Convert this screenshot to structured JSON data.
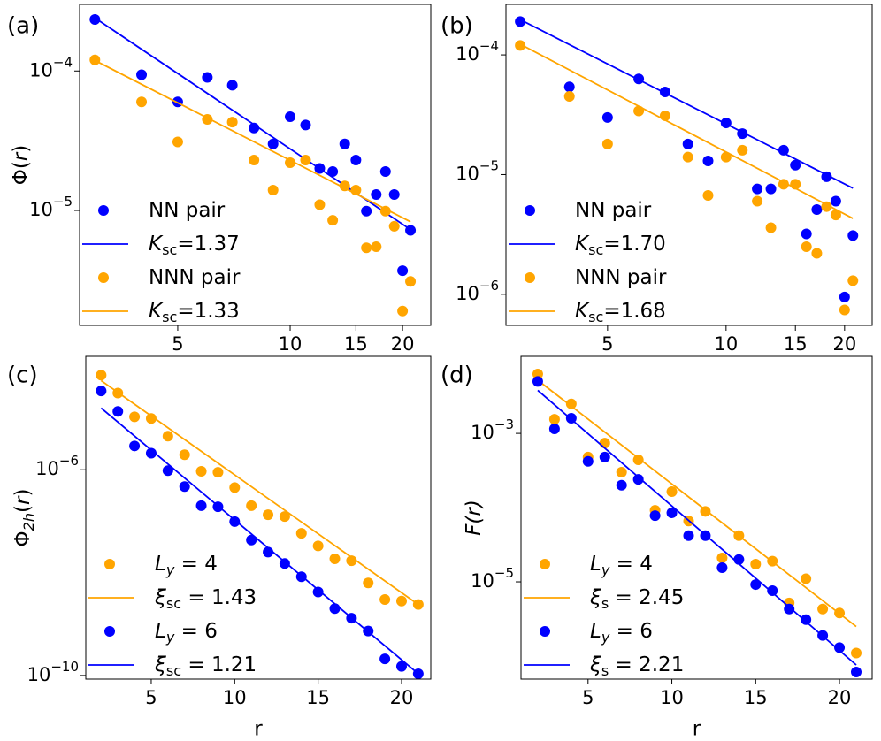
{
  "chart_data": [
    {
      "type": "scatter",
      "label": "(a)",
      "xscale": "log",
      "yscale": "log",
      "legend": "lower left",
      "ylabel": [
        {
          "text": "Φ("
        },
        {
          "text": "r",
          "style": "i"
        },
        {
          "text": ")"
        }
      ],
      "xlim": [
        2.73,
        23.8
      ],
      "xticks": [
        5,
        10,
        15,
        20
      ],
      "ylim": [
        1.5e-06,
        0.0003
      ],
      "yticks": [
        {
          "value": 0.0001,
          "label": "10",
          "exp": "−4"
        },
        {
          "value": 1e-05,
          "label": "10",
          "exp": "−5"
        }
      ],
      "series": [
        {
          "name": [
            {
              "text": "NN pair"
            }
          ],
          "mode": "markers",
          "color": "#0000ff",
          "x": [
            3,
            4,
            5,
            6,
            7,
            8,
            9,
            10,
            11,
            12,
            13,
            14,
            15,
            16,
            17,
            18,
            19,
            20,
            21
          ],
          "values": [
            0.000234,
            9.4e-05,
            6e-05,
            9e-05,
            7.9e-05,
            3.9e-05,
            3e-05,
            4.7e-05,
            4.1e-05,
            2e-05,
            1.9e-05,
            3e-05,
            2.3e-05,
            9.9e-06,
            1.3e-05,
            1.9e-05,
            1.3e-05,
            3.7e-06,
            7.2e-06
          ]
        },
        {
          "name": [
            {
              "text": "K",
              "style": "i"
            },
            {
              "text": "sc",
              "style": "sub"
            },
            {
              "text": "=1.37"
            }
          ],
          "mode": "line",
          "color": "#0000ff",
          "x": [
            3,
            21
          ],
          "values": [
            0.00024,
            7.3e-06
          ]
        },
        {
          "name": [
            {
              "text": "NNN pair"
            }
          ],
          "mode": "markers",
          "color": "#ffa500",
          "x": [
            3,
            4,
            5,
            6,
            7,
            8,
            9,
            10,
            11,
            12,
            13,
            14,
            15,
            16,
            17,
            18,
            19,
            20,
            21
          ],
          "values": [
            0.00012,
            6e-05,
            3.1e-05,
            4.5e-05,
            4.3e-05,
            2.3e-05,
            1.4e-05,
            2.2e-05,
            2.3e-05,
            1.1e-05,
            8.5e-06,
            1.5e-05,
            1.4e-05,
            5.4e-06,
            5.5e-06,
            9.9e-06,
            7.7e-06,
            1.9e-06,
            3.1e-06
          ]
        },
        {
          "name": [
            {
              "text": "K",
              "style": "i"
            },
            {
              "text": "sc",
              "style": "sub"
            },
            {
              "text": "=1.33"
            }
          ],
          "mode": "line",
          "color": "#ffa500",
          "x": [
            3,
            21
          ],
          "values": [
            0.000119,
            8.3e-06
          ]
        }
      ]
    },
    {
      "type": "scatter",
      "label": "(b)",
      "xscale": "log",
      "yscale": "log",
      "legend": "lower left",
      "xlim": [
        2.76,
        23.5
      ],
      "xticks": [
        5,
        10,
        15,
        20
      ],
      "ylim": [
        5.5e-07,
        0.000264
      ],
      "yticks": [
        {
          "value": 0.0001,
          "label": "10",
          "exp": "−4"
        },
        {
          "value": 1e-05,
          "label": "10",
          "exp": "−5"
        },
        {
          "value": 1e-06,
          "label": "10",
          "exp": "−6"
        }
      ],
      "series": [
        {
          "name": [
            {
              "text": "NN pair"
            }
          ],
          "mode": "markers",
          "color": "#0000ff",
          "x": [
            3,
            4,
            5,
            6,
            7,
            8,
            9,
            10,
            11,
            12,
            13,
            14,
            15,
            16,
            17,
            18,
            19,
            20,
            21
          ],
          "values": [
            0.00019,
            5.4e-05,
            3e-05,
            6.3e-05,
            4.9e-05,
            1.8e-05,
            1.3e-05,
            2.7e-05,
            2.2e-05,
            7.6e-06,
            7.6e-06,
            1.6e-05,
            1.2e-05,
            3.2e-06,
            5.1e-06,
            9.6e-06,
            6e-06,
            9.5e-07,
            3.1e-06
          ]
        },
        {
          "name": [
            {
              "text": "K",
              "style": "i"
            },
            {
              "text": "sc",
              "style": "sub"
            },
            {
              "text": "=1.70"
            }
          ],
          "mode": "line",
          "color": "#0000ff",
          "x": [
            3,
            21
          ],
          "values": [
            0.000197,
            7.7e-06
          ]
        },
        {
          "name": [
            {
              "text": "NNN pair"
            }
          ],
          "mode": "markers",
          "color": "#ffa500",
          "x": [
            3,
            4,
            5,
            6,
            7,
            8,
            9,
            10,
            11,
            12,
            13,
            14,
            15,
            16,
            17,
            18,
            19,
            20,
            21
          ],
          "values": [
            0.00012,
            4.5e-05,
            1.8e-05,
            3.4e-05,
            3.1e-05,
            1.4e-05,
            6.7e-06,
            1.4e-05,
            1.6e-05,
            6e-06,
            3.6e-06,
            8.3e-06,
            8.3e-06,
            2.5e-06,
            2.2e-06,
            5.4e-06,
            4.6e-06,
            7.4e-07,
            1.3e-06
          ]
        },
        {
          "name": [
            {
              "text": "K",
              "style": "i"
            },
            {
              "text": "sc",
              "style": "sub"
            },
            {
              "text": "=1.68"
            }
          ],
          "mode": "line",
          "color": "#ffa500",
          "x": [
            3,
            21
          ],
          "values": [
            0.000123,
            4.3e-06
          ]
        }
      ]
    },
    {
      "type": "scatter",
      "label": "(c)",
      "xscale": "linear",
      "yscale": "log",
      "legend": "lower left",
      "ylabel": [
        {
          "text": "Φ"
        },
        {
          "text": "2h",
          "style": "isub"
        },
        {
          "text": "("
        },
        {
          "text": "r",
          "style": "i"
        },
        {
          "text": ")"
        }
      ],
      "xlabel": "r",
      "xlim": [
        1.08,
        21.75
      ],
      "xticks": [
        5,
        10,
        15,
        20
      ],
      "ylim": [
        8.5e-11,
        0.00016
      ],
      "yticks": [
        {
          "value": 1e-06,
          "label": "10",
          "exp": "−6"
        },
        {
          "value": 1e-10,
          "label": "10",
          "exp": "−10"
        }
      ],
      "series": [
        {
          "name": [
            {
              "text": "L",
              "style": "i"
            },
            {
              "text": "y",
              "style": "isub"
            },
            {
              "text": " = 4"
            }
          ],
          "mode": "markers",
          "color": "#ffa500",
          "x": [
            2,
            3,
            4,
            5,
            6,
            7,
            8,
            9,
            10,
            11,
            12,
            13,
            14,
            15,
            16,
            17,
            18,
            19,
            20,
            21
          ],
          "values": [
            6.9e-05,
            3.1e-05,
            1.07e-05,
            9.9e-06,
            4.5e-06,
            1.96e-06,
            9.3e-07,
            8.9e-07,
            4.5e-07,
            2e-07,
            1.33e-07,
            1.23e-07,
            5.8e-08,
            3.3e-08,
            1.85e-08,
            1.7e-08,
            6.3e-09,
            3e-09,
            2.8e-09,
            2.4e-09
          ]
        },
        {
          "name": [
            {
              "text": "ξ",
              "style": "i"
            },
            {
              "text": "sc",
              "style": "sub"
            },
            {
              "text": " = 1.43"
            }
          ],
          "mode": "line",
          "color": "#ffa500",
          "x": [
            2,
            21
          ],
          "values": [
            5.4e-05,
            2.4e-09
          ]
        },
        {
          "name": [
            {
              "text": "L",
              "style": "i"
            },
            {
              "text": "y",
              "style": "isub"
            },
            {
              "text": " = 6"
            }
          ],
          "mode": "markers",
          "color": "#0000ff",
          "x": [
            2,
            3,
            4,
            5,
            6,
            7,
            8,
            9,
            10,
            11,
            12,
            13,
            14,
            15,
            16,
            17,
            18,
            19,
            20,
            21
          ],
          "values": [
            3.4e-05,
            1.36e-05,
            2.9e-06,
            2.1e-06,
            9.6e-07,
            4.7e-07,
            2e-07,
            1.9e-07,
            9.8e-08,
            4.3e-08,
            2.5e-08,
            1.5e-08,
            8.3e-09,
            4.2e-09,
            2e-09,
            1.3e-09,
            7.3e-10,
            2.1e-10,
            1.5e-10,
            1.08e-10
          ]
        },
        {
          "name": [
            {
              "text": "ξ",
              "style": "i"
            },
            {
              "text": "sc",
              "style": "sub"
            },
            {
              "text": " = 1.21"
            }
          ],
          "mode": "line",
          "color": "#0000ff",
          "x": [
            2,
            21
          ],
          "values": [
            1.58e-05,
            1.08e-10
          ]
        }
      ]
    },
    {
      "type": "scatter",
      "label": "(d)",
      "xscale": "linear",
      "yscale": "log",
      "legend": "lower left",
      "ylabel": [
        {
          "text": "F(",
          "style": "i"
        },
        {
          "text": "r",
          "style": "i"
        },
        {
          "text": ")",
          "style": "i"
        }
      ],
      "xlabel": "r",
      "xlim": [
        1.0,
        21.95
      ],
      "xticks": [
        5,
        10,
        15,
        20
      ],
      "ylim": [
        4.9e-07,
        0.0109
      ],
      "yticks": [
        {
          "value": 0.001,
          "label": "10",
          "exp": "−3"
        },
        {
          "value": 1e-05,
          "label": "10",
          "exp": "−5"
        }
      ],
      "series": [
        {
          "name": [
            {
              "text": "L",
              "style": "i"
            },
            {
              "text": "y",
              "style": "isub"
            },
            {
              "text": " = 4"
            }
          ],
          "mode": "markers",
          "color": "#ffa500",
          "x": [
            2,
            3,
            4,
            5,
            6,
            7,
            8,
            9,
            10,
            11,
            12,
            13,
            14,
            15,
            16,
            17,
            18,
            19,
            20,
            21
          ],
          "values": [
            0.0063,
            0.00155,
            0.0025,
            0.00048,
            0.00074,
            0.0003,
            0.00044,
            9.2e-05,
            0.000164,
            6.6e-05,
            8.9e-05,
            2.1e-05,
            4.2e-05,
            1.73e-05,
            1.9e-05,
            5.2e-06,
            1.1e-05,
            4.3e-06,
            3.8e-06,
            1.1e-06
          ]
        },
        {
          "name": [
            {
              "text": "ξ",
              "style": "i"
            },
            {
              "text": "s",
              "style": "sub"
            },
            {
              "text": " = 2.45"
            }
          ],
          "mode": "line",
          "color": "#ffa500",
          "x": [
            2,
            21
          ],
          "values": [
            0.0052,
            2.5e-06
          ]
        },
        {
          "name": [
            {
              "text": "L",
              "style": "i"
            },
            {
              "text": "y",
              "style": "isub"
            },
            {
              "text": " = 6"
            }
          ],
          "mode": "markers",
          "color": "#0000ff",
          "x": [
            2,
            3,
            4,
            5,
            6,
            7,
            8,
            9,
            10,
            11,
            12,
            13,
            14,
            15,
            16,
            17,
            18,
            19,
            20,
            21
          ],
          "values": [
            0.005,
            0.00115,
            0.0016,
            0.00042,
            0.00048,
            0.0002,
            0.00024,
            7.8e-05,
            8.5e-05,
            4.2e-05,
            4.2e-05,
            1.55e-05,
            2e-05,
            9.2e-06,
            7.6e-06,
            4.3e-06,
            3.1e-06,
            1.9e-06,
            1.3e-06,
            6.1e-07
          ]
        },
        {
          "name": [
            {
              "text": "ξ",
              "style": "i"
            },
            {
              "text": "s",
              "style": "sub"
            },
            {
              "text": " = 2.21"
            }
          ],
          "mode": "line",
          "color": "#0000ff",
          "x": [
            2,
            21
          ],
          "values": [
            0.0038,
            7.6e-07
          ]
        }
      ]
    }
  ]
}
